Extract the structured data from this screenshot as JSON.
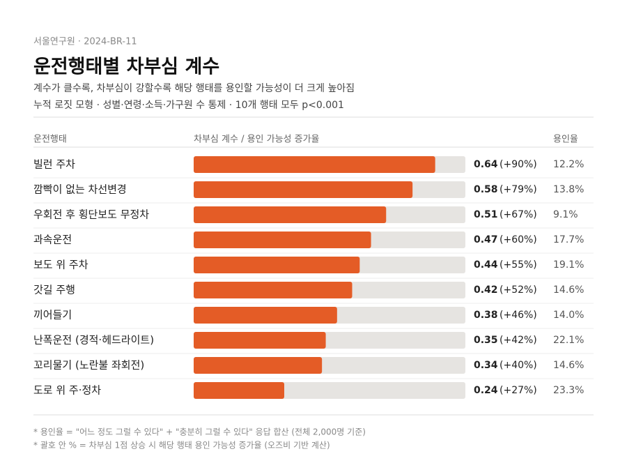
{
  "chart_data": {
    "type": "bar",
    "source": "서울연구원 · 2024-BR-11",
    "title": "운전행태별 차부심 계수",
    "subtitle": [
      "계수가 클수록, 차부심이 강할수록 해당 행태를 용인할 가능성이 더 크게 높아짐",
      "누적 로짓 모형  ·  성별·연령·소득·가구원 수 통제  ·  10개 행태 모두 p<0.001"
    ],
    "column_headers": [
      "운전행태",
      "차부심 계수  /  용인 가능성 증가율",
      "용인율"
    ],
    "categories": [
      "빌런 주차",
      "깜빡이 없는 차선변경",
      "우회전 후 횡단보도 무정차",
      "과속운전",
      "보도 위 주차",
      "갓길 주행",
      "끼어들기",
      "난폭운전 (경적·헤드라이트)",
      "꼬리물기 (노란불 좌회전)",
      "도로 위 주·정차"
    ],
    "series": [
      {
        "color": "#e45c26",
        "values": [
          0.64,
          0.58,
          0.51,
          0.47,
          0.44,
          0.42,
          0.38,
          0.35,
          0.34,
          0.24
        ]
      },
      {
        "values": [
          90,
          79,
          67,
          60,
          55,
          52,
          46,
          42,
          40,
          27
        ],
        "value_labels": [
          "(+90%)",
          "(+79%)",
          "(+67%)",
          "(+60%)",
          "(+55%)",
          "(+52%)",
          "(+46%)",
          "(+42%)",
          "(+40%)",
          "(+27%)"
        ]
      },
      {
        "values": [
          12.2,
          13.8,
          9.1,
          17.7,
          19.1,
          14.6,
          14.0,
          22.1,
          14.6,
          23.3
        ],
        "value_labels": [
          "12.2%",
          "13.8%",
          "9.1%",
          "17.7%",
          "19.1%",
          "14.6%",
          "14.0%",
          "22.1%",
          "14.6%",
          "23.3%"
        ]
      }
    ],
    "xlim": [
      0,
      0.72
    ],
    "track_color": "#e6e4e1",
    "notes": [
      "* 용인율 = \"어느 정도 그럴 수 있다\" + \"충분히 그럴 수 있다\" 응답 합산 (전체 2,000명 기준)",
      "* 괄호 안 % = 차부심 1점 상승 시 해당 행태 용인 가능성 증가율 (오즈비 기반 계산)"
    ]
  }
}
